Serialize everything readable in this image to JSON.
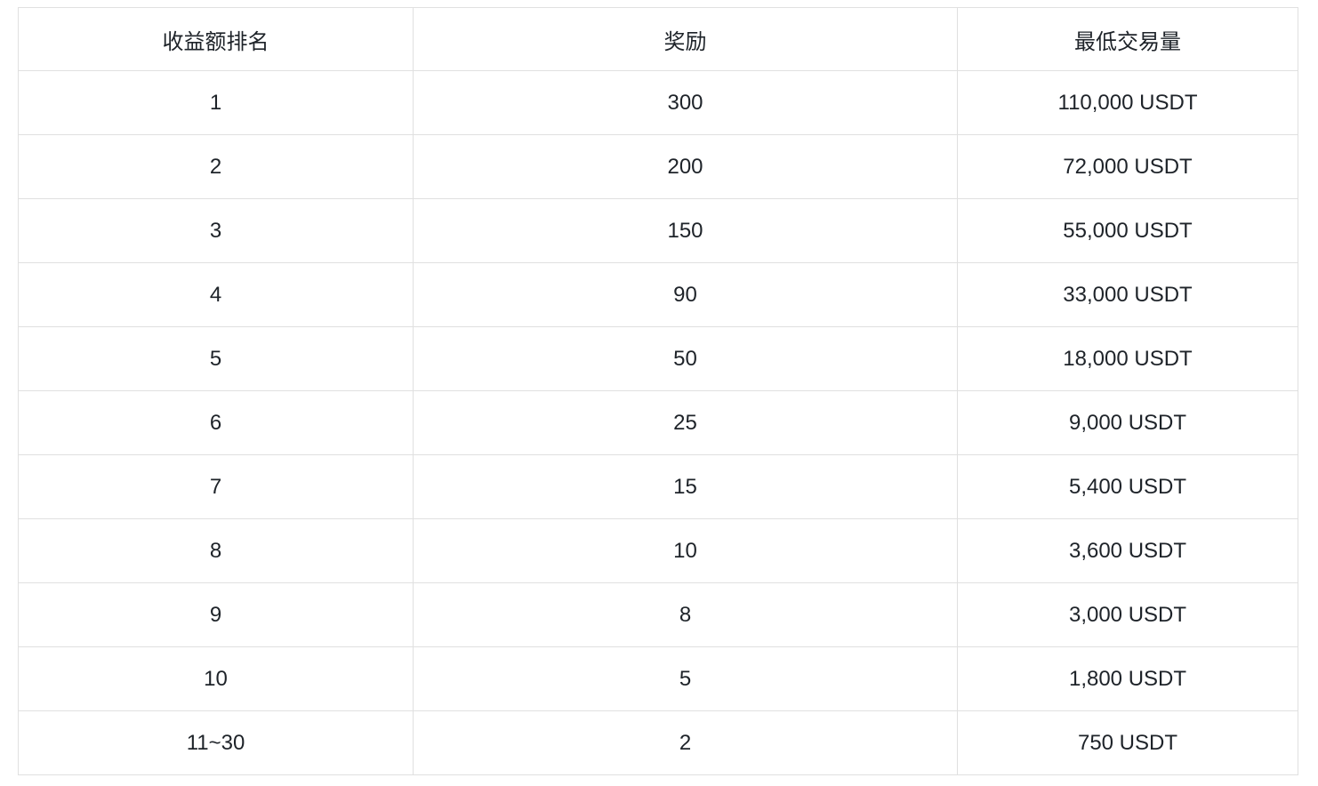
{
  "table": {
    "headers": [
      "收益额排名",
      "奖励",
      "最低交易量"
    ],
    "rows": [
      [
        "1",
        "300",
        "110,000 USDT"
      ],
      [
        "2",
        "200",
        "72,000 USDT"
      ],
      [
        "3",
        "150",
        "55,000 USDT"
      ],
      [
        "4",
        "90",
        "33,000 USDT"
      ],
      [
        "5",
        "50",
        "18,000 USDT"
      ],
      [
        "6",
        "25",
        "9,000 USDT"
      ],
      [
        "7",
        "15",
        "5,400 USDT"
      ],
      [
        "8",
        "10",
        "3,600 USDT"
      ],
      [
        "9",
        "8",
        "3,000 USDT"
      ],
      [
        "10",
        "5",
        "1,800 USDT"
      ],
      [
        "11~30",
        "2",
        "750 USDT"
      ]
    ]
  },
  "chart_data": {
    "type": "table",
    "title": "",
    "columns": [
      "收益额排名",
      "奖励",
      "最低交易量"
    ],
    "rows": [
      {
        "rank": "1",
        "reward": 300,
        "min_volume": "110,000 USDT"
      },
      {
        "rank": "2",
        "reward": 200,
        "min_volume": "72,000 USDT"
      },
      {
        "rank": "3",
        "reward": 150,
        "min_volume": "55,000 USDT"
      },
      {
        "rank": "4",
        "reward": 90,
        "min_volume": "33,000 USDT"
      },
      {
        "rank": "5",
        "reward": 50,
        "min_volume": "18,000 USDT"
      },
      {
        "rank": "6",
        "reward": 25,
        "min_volume": "9,000 USDT"
      },
      {
        "rank": "7",
        "reward": 15,
        "min_volume": "5,400 USDT"
      },
      {
        "rank": "8",
        "reward": 10,
        "min_volume": "3,600 USDT"
      },
      {
        "rank": "9",
        "reward": 8,
        "min_volume": "3,000 USDT"
      },
      {
        "rank": "10",
        "reward": 5,
        "min_volume": "1,800 USDT"
      },
      {
        "rank": "11~30",
        "reward": 2,
        "min_volume": "750 USDT"
      }
    ]
  },
  "colors": {
    "background": "#ffffff",
    "border": "#e0e0e0",
    "text": "#1e2329"
  }
}
